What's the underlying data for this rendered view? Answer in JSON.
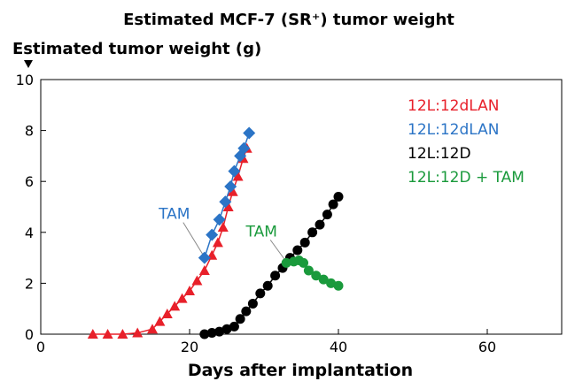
{
  "chart_data": {
    "type": "scatter",
    "title": "Estimated MCF-7 (SR⁺) tumor weight",
    "ylabel": "Estimated tumor weight (g)",
    "xlabel": "Days after implantation",
    "xlim": [
      0,
      70
    ],
    "ylim": [
      0,
      10
    ],
    "xticks": [
      "0",
      "20",
      "40",
      "60"
    ],
    "yticks": [
      "0",
      "2",
      "4",
      "6",
      "8",
      "10"
    ],
    "series": [
      {
        "name": "12L:12dLAN",
        "color": "#e8202a",
        "marker": "triangle",
        "points": [
          [
            7,
            0
          ],
          [
            9,
            0
          ],
          [
            11,
            0
          ],
          [
            13,
            0.05
          ],
          [
            15,
            0.2
          ],
          [
            16,
            0.5
          ],
          [
            17,
            0.8
          ],
          [
            18,
            1.1
          ],
          [
            19,
            1.4
          ],
          [
            20,
            1.7
          ],
          [
            21,
            2.1
          ],
          [
            22,
            2.5
          ],
          [
            23,
            3.1
          ],
          [
            23.8,
            3.6
          ],
          [
            24.5,
            4.2
          ],
          [
            25.2,
            5.0
          ],
          [
            25.8,
            5.6
          ],
          [
            26.5,
            6.2
          ],
          [
            27.2,
            6.9
          ],
          [
            27.7,
            7.3
          ]
        ]
      },
      {
        "name": "12L:12dLAN",
        "color": "#2b74c6",
        "marker": "diamond",
        "points": [
          [
            22,
            3.0
          ],
          [
            23,
            3.9
          ],
          [
            24,
            4.5
          ],
          [
            24.8,
            5.2
          ],
          [
            25.5,
            5.8
          ],
          [
            26,
            6.4
          ],
          [
            26.8,
            7.0
          ],
          [
            27.3,
            7.3
          ],
          [
            28,
            7.9
          ]
        ]
      },
      {
        "name": "12L:12D",
        "color": "#000000",
        "marker": "circle",
        "points": [
          [
            22,
            0
          ],
          [
            23,
            0.05
          ],
          [
            24,
            0.1
          ],
          [
            25,
            0.2
          ],
          [
            26,
            0.3
          ],
          [
            26.8,
            0.6
          ],
          [
            27.6,
            0.9
          ],
          [
            28.5,
            1.2
          ],
          [
            29.5,
            1.6
          ],
          [
            30.5,
            1.9
          ],
          [
            31.5,
            2.3
          ],
          [
            32.5,
            2.6
          ],
          [
            33.5,
            3.0
          ],
          [
            34.5,
            3.3
          ],
          [
            35.5,
            3.6
          ],
          [
            36.5,
            4.0
          ],
          [
            37.5,
            4.3
          ],
          [
            38.5,
            4.7
          ],
          [
            39.3,
            5.1
          ],
          [
            40,
            5.4
          ]
        ]
      },
      {
        "name": "12L:12D + TAM",
        "color": "#1a9a3c",
        "marker": "circle",
        "points": [
          [
            33,
            2.8
          ],
          [
            34,
            2.85
          ],
          [
            34.7,
            2.9
          ],
          [
            35.3,
            2.8
          ],
          [
            36,
            2.5
          ],
          [
            37,
            2.3
          ],
          [
            38,
            2.15
          ],
          [
            39,
            2.0
          ],
          [
            40,
            1.9
          ]
        ]
      }
    ],
    "legend": {
      "placement": "top-right",
      "entries": [
        {
          "label": "12L:12dLAN",
          "color": "#e8202a"
        },
        {
          "label": "12L:12dLAN",
          "color": "#2b74c6"
        },
        {
          "label": "12L:12D",
          "color": "#000000"
        },
        {
          "label": "12L:12D + TAM",
          "color": "#1a9a3c"
        }
      ]
    },
    "annotations": [
      {
        "text": "TAM",
        "color": "#2b74c6",
        "target": [
          22,
          3.0
        ]
      },
      {
        "text": "TAM",
        "color": "#1a9a3c",
        "target": [
          33,
          2.8
        ]
      }
    ]
  }
}
